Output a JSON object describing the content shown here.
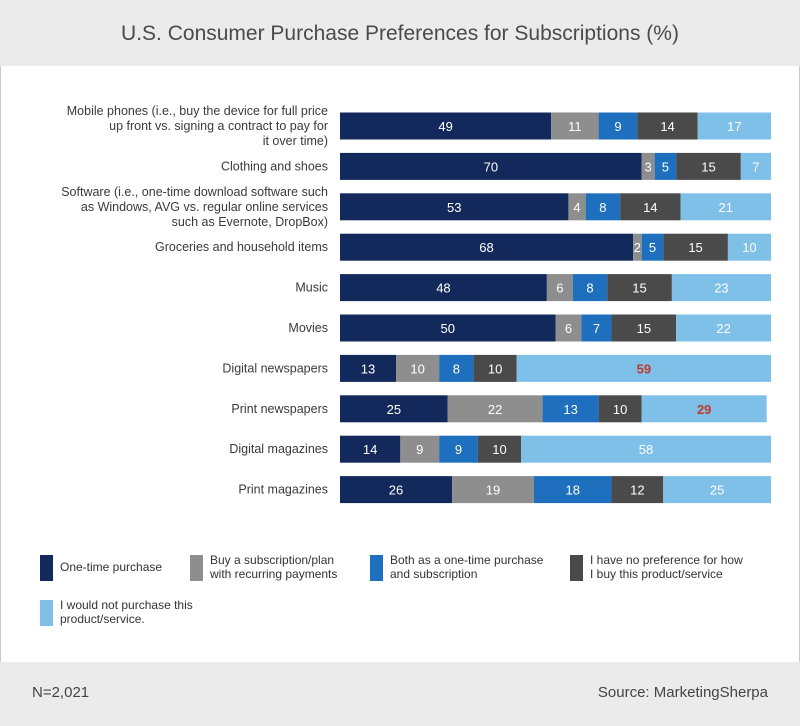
{
  "header": {
    "title": "U.S. Consumer Purchase Preferences for Subscriptions (%)"
  },
  "footer": {
    "sample": "N=2,021",
    "source": "Source: MarketingSherpa"
  },
  "chart_data": {
    "type": "bar",
    "orientation": "horizontal",
    "stacked": true,
    "title": "U.S. Consumer Purchase Preferences for Subscriptions (%)",
    "categories": [
      "Mobile phones (i.e., buy the device for full price up front vs. signing a contract to pay for it over time)",
      "Clothing and shoes",
      "Software (i.e., one-time download software such as Windows, AVG vs. regular online services such as Evernote, DropBox)",
      "Groceries and household items",
      "Music",
      "Movies",
      "Digital newspapers",
      "Print newspapers",
      "Digital magazines",
      "Print magazines"
    ],
    "category_lines": [
      [
        "Mobile phones (i.e., buy the device for full price",
        "up front vs. signing a contract to pay for",
        "it over time)"
      ],
      [
        "Clothing and shoes"
      ],
      [
        "Software (i.e., one-time download software such",
        "as Windows, AVG vs. regular online services",
        "such as Evernote, DropBox)"
      ],
      [
        "Groceries and household items"
      ],
      [
        "Music"
      ],
      [
        "Movies"
      ],
      [
        "Digital newspapers"
      ],
      [
        "Print newspapers"
      ],
      [
        "Digital magazines"
      ],
      [
        "Print magazines"
      ]
    ],
    "series": [
      {
        "name": "One-time purchase",
        "color": "#14295b",
        "values": [
          49,
          70,
          53,
          68,
          48,
          50,
          13,
          25,
          14,
          26
        ]
      },
      {
        "name": "Buy a subscription/plan with recurring payments",
        "color": "#8e8e8e",
        "values": [
          11,
          3,
          4,
          2,
          6,
          6,
          10,
          22,
          9,
          19
        ]
      },
      {
        "name": "Both as a one-time purchase and subscription",
        "color": "#1f6fbf",
        "values": [
          9,
          5,
          8,
          5,
          8,
          7,
          8,
          13,
          9,
          18
        ]
      },
      {
        "name": "I have no preference for how I buy this product/service",
        "color": "#4a4a4a",
        "values": [
          14,
          15,
          14,
          15,
          15,
          15,
          10,
          10,
          10,
          12
        ]
      },
      {
        "name": "I would not purchase this product/service.",
        "color": "#7fc0e8",
        "values": [
          17,
          7,
          21,
          10,
          23,
          22,
          59,
          29,
          58,
          25
        ]
      }
    ],
    "highlight_color": "#c0392b",
    "highlighted_values": [
      {
        "category_index": 6,
        "series_index": 4
      },
      {
        "category_index": 7,
        "series_index": 4
      }
    ],
    "legend": {
      "position": "bottom",
      "items": [
        {
          "lines": [
            "One-time purchase"
          ]
        },
        {
          "lines": [
            "Buy a subscription/plan",
            "with recurring payments"
          ]
        },
        {
          "lines": [
            "Both as a one-time purchase",
            "and subscription"
          ]
        },
        {
          "lines": [
            "I have no preference for how",
            "I buy this product/service"
          ]
        },
        {
          "lines": [
            "I would not purchase this",
            "product/service."
          ]
        }
      ]
    },
    "xlim": [
      0,
      100
    ],
    "grid": false
  }
}
